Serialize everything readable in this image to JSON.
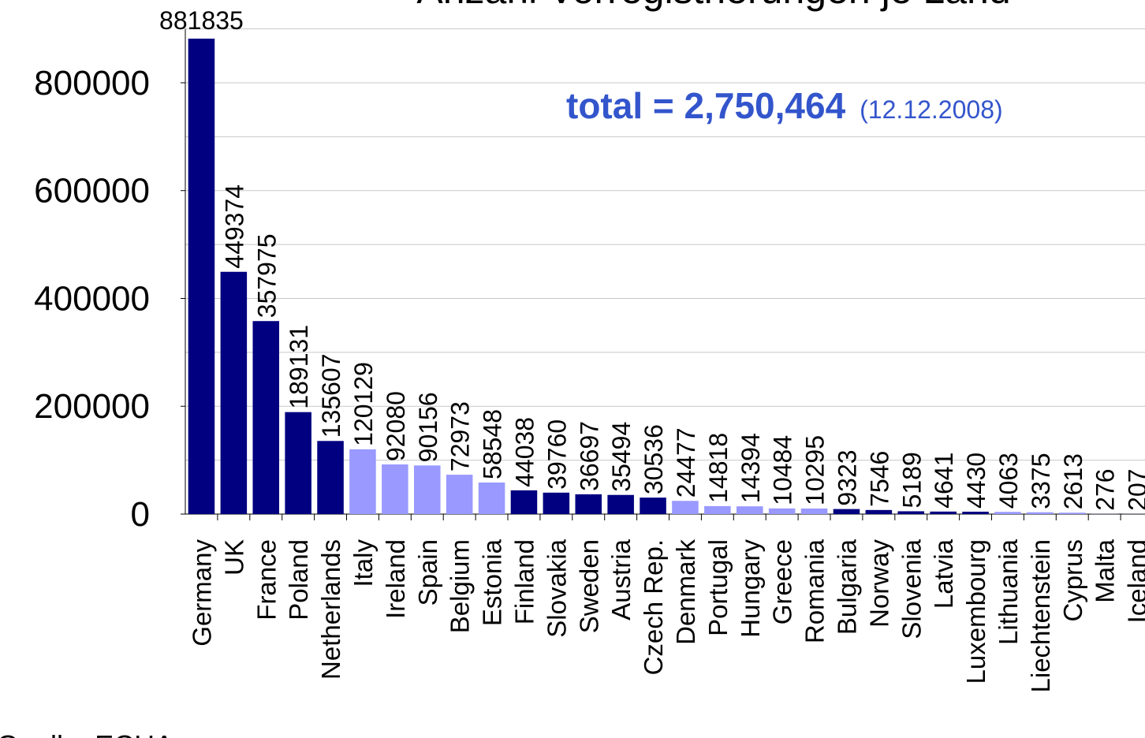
{
  "chart_data": {
    "type": "bar",
    "title": "Anzahl Vorregistrierungen je Land",
    "annotation": "total = 2,750,464",
    "annotation_date": "(12.12.2008)",
    "source": "Quelle: ECHA",
    "categories": [
      "Germany",
      "UK",
      "France",
      "Poland",
      "Netherlands",
      "Italy",
      "Ireland",
      "Spain",
      "Belgium",
      "Estonia",
      "Finland",
      "Slovakia",
      "Sweden",
      "Austria",
      "Czech Rep.",
      "Denmark",
      "Portugal",
      "Hungary",
      "Greece",
      "Romania",
      "Bulgaria",
      "Norway",
      "Slovenia",
      "Latvia",
      "Luxembourg",
      "Lithuania",
      "Liechtenstein",
      "Cyprus",
      "Malta",
      "Iceland"
    ],
    "values": [
      881835,
      449374,
      357975,
      189131,
      135607,
      120129,
      92080,
      90156,
      72973,
      58548,
      44038,
      39760,
      36697,
      35494,
      30536,
      24477,
      14818,
      14394,
      10484,
      10295,
      9323,
      7546,
      5189,
      4641,
      4430,
      4063,
      3375,
      2613,
      276,
      207
    ],
    "colors": [
      "#000080",
      "#000080",
      "#000080",
      "#000080",
      "#000080",
      "#9999ff",
      "#9999ff",
      "#9999ff",
      "#9999ff",
      "#9999ff",
      "#000080",
      "#000080",
      "#000080",
      "#000080",
      "#000080",
      "#9999ff",
      "#9999ff",
      "#9999ff",
      "#9999ff",
      "#9999ff",
      "#000080",
      "#000080",
      "#000080",
      "#000080",
      "#000080",
      "#9999ff",
      "#9999ff",
      "#9999ff",
      "#9999ff",
      "#9999ff"
    ],
    "ylim": [
      0,
      900000
    ],
    "yticks": [
      0,
      200000,
      400000,
      600000,
      800000
    ],
    "minor_yticks": [
      100000,
      300000,
      500000,
      700000,
      900000
    ],
    "grid": true
  }
}
